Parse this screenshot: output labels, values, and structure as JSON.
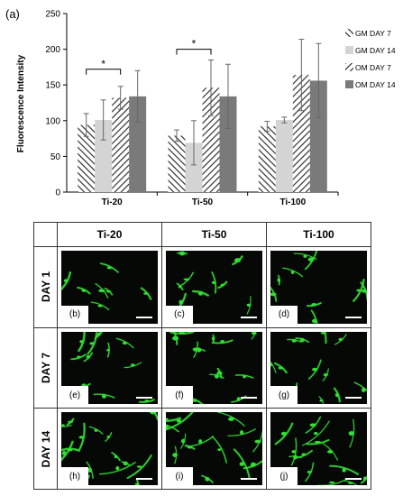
{
  "panel_label": "(a)",
  "chart_data": {
    "type": "bar",
    "ylabel": "Fluorescence Intensity",
    "xlabel": "",
    "ylim": [
      0,
      250
    ],
    "yticks": [
      0,
      50,
      100,
      150,
      200,
      250
    ],
    "categories": [
      "Ti-20",
      "Ti-50",
      "Ti-100"
    ],
    "series": [
      {
        "name": "GM DAY 7",
        "values": [
          94,
          79,
          92
        ],
        "errors": [
          16,
          8,
          7
        ],
        "fill": "hatch-back",
        "color": "#333333"
      },
      {
        "name": "GM DAY 14",
        "values": [
          101,
          69,
          101
        ],
        "errors": [
          28,
          31,
          4
        ],
        "fill": "solid",
        "color": "#d4d4d4"
      },
      {
        "name": "OM DAY 7",
        "values": [
          132,
          146,
          164
        ],
        "errors": [
          16,
          39,
          50
        ],
        "fill": "hatch-fwd",
        "color": "#333333"
      },
      {
        "name": "OM DAY 14",
        "values": [
          134,
          134,
          156
        ],
        "errors": [
          36,
          45,
          52
        ],
        "fill": "solid",
        "color": "#7a7a7a"
      }
    ],
    "significance": [
      {
        "category": "Ti-20",
        "from_series": 0,
        "to_series": 2,
        "label": "*"
      },
      {
        "category": "Ti-50",
        "from_series": 0,
        "to_series": 2,
        "label": "*"
      }
    ],
    "legend_position": "right",
    "grid": false
  },
  "image_grid": {
    "columns": [
      "Ti-20",
      "Ti-50",
      "Ti-100"
    ],
    "rows": [
      {
        "label": "DAY 1",
        "panels": [
          "(b)",
          "(c)",
          "(d)"
        ]
      },
      {
        "label": "DAY 7",
        "panels": [
          "(e)",
          "(f)",
          "(g)"
        ]
      },
      {
        "label": "DAY 14",
        "panels": [
          "(h)",
          "(i)",
          "(j)"
        ]
      }
    ],
    "cell_color": "#33dd33"
  }
}
